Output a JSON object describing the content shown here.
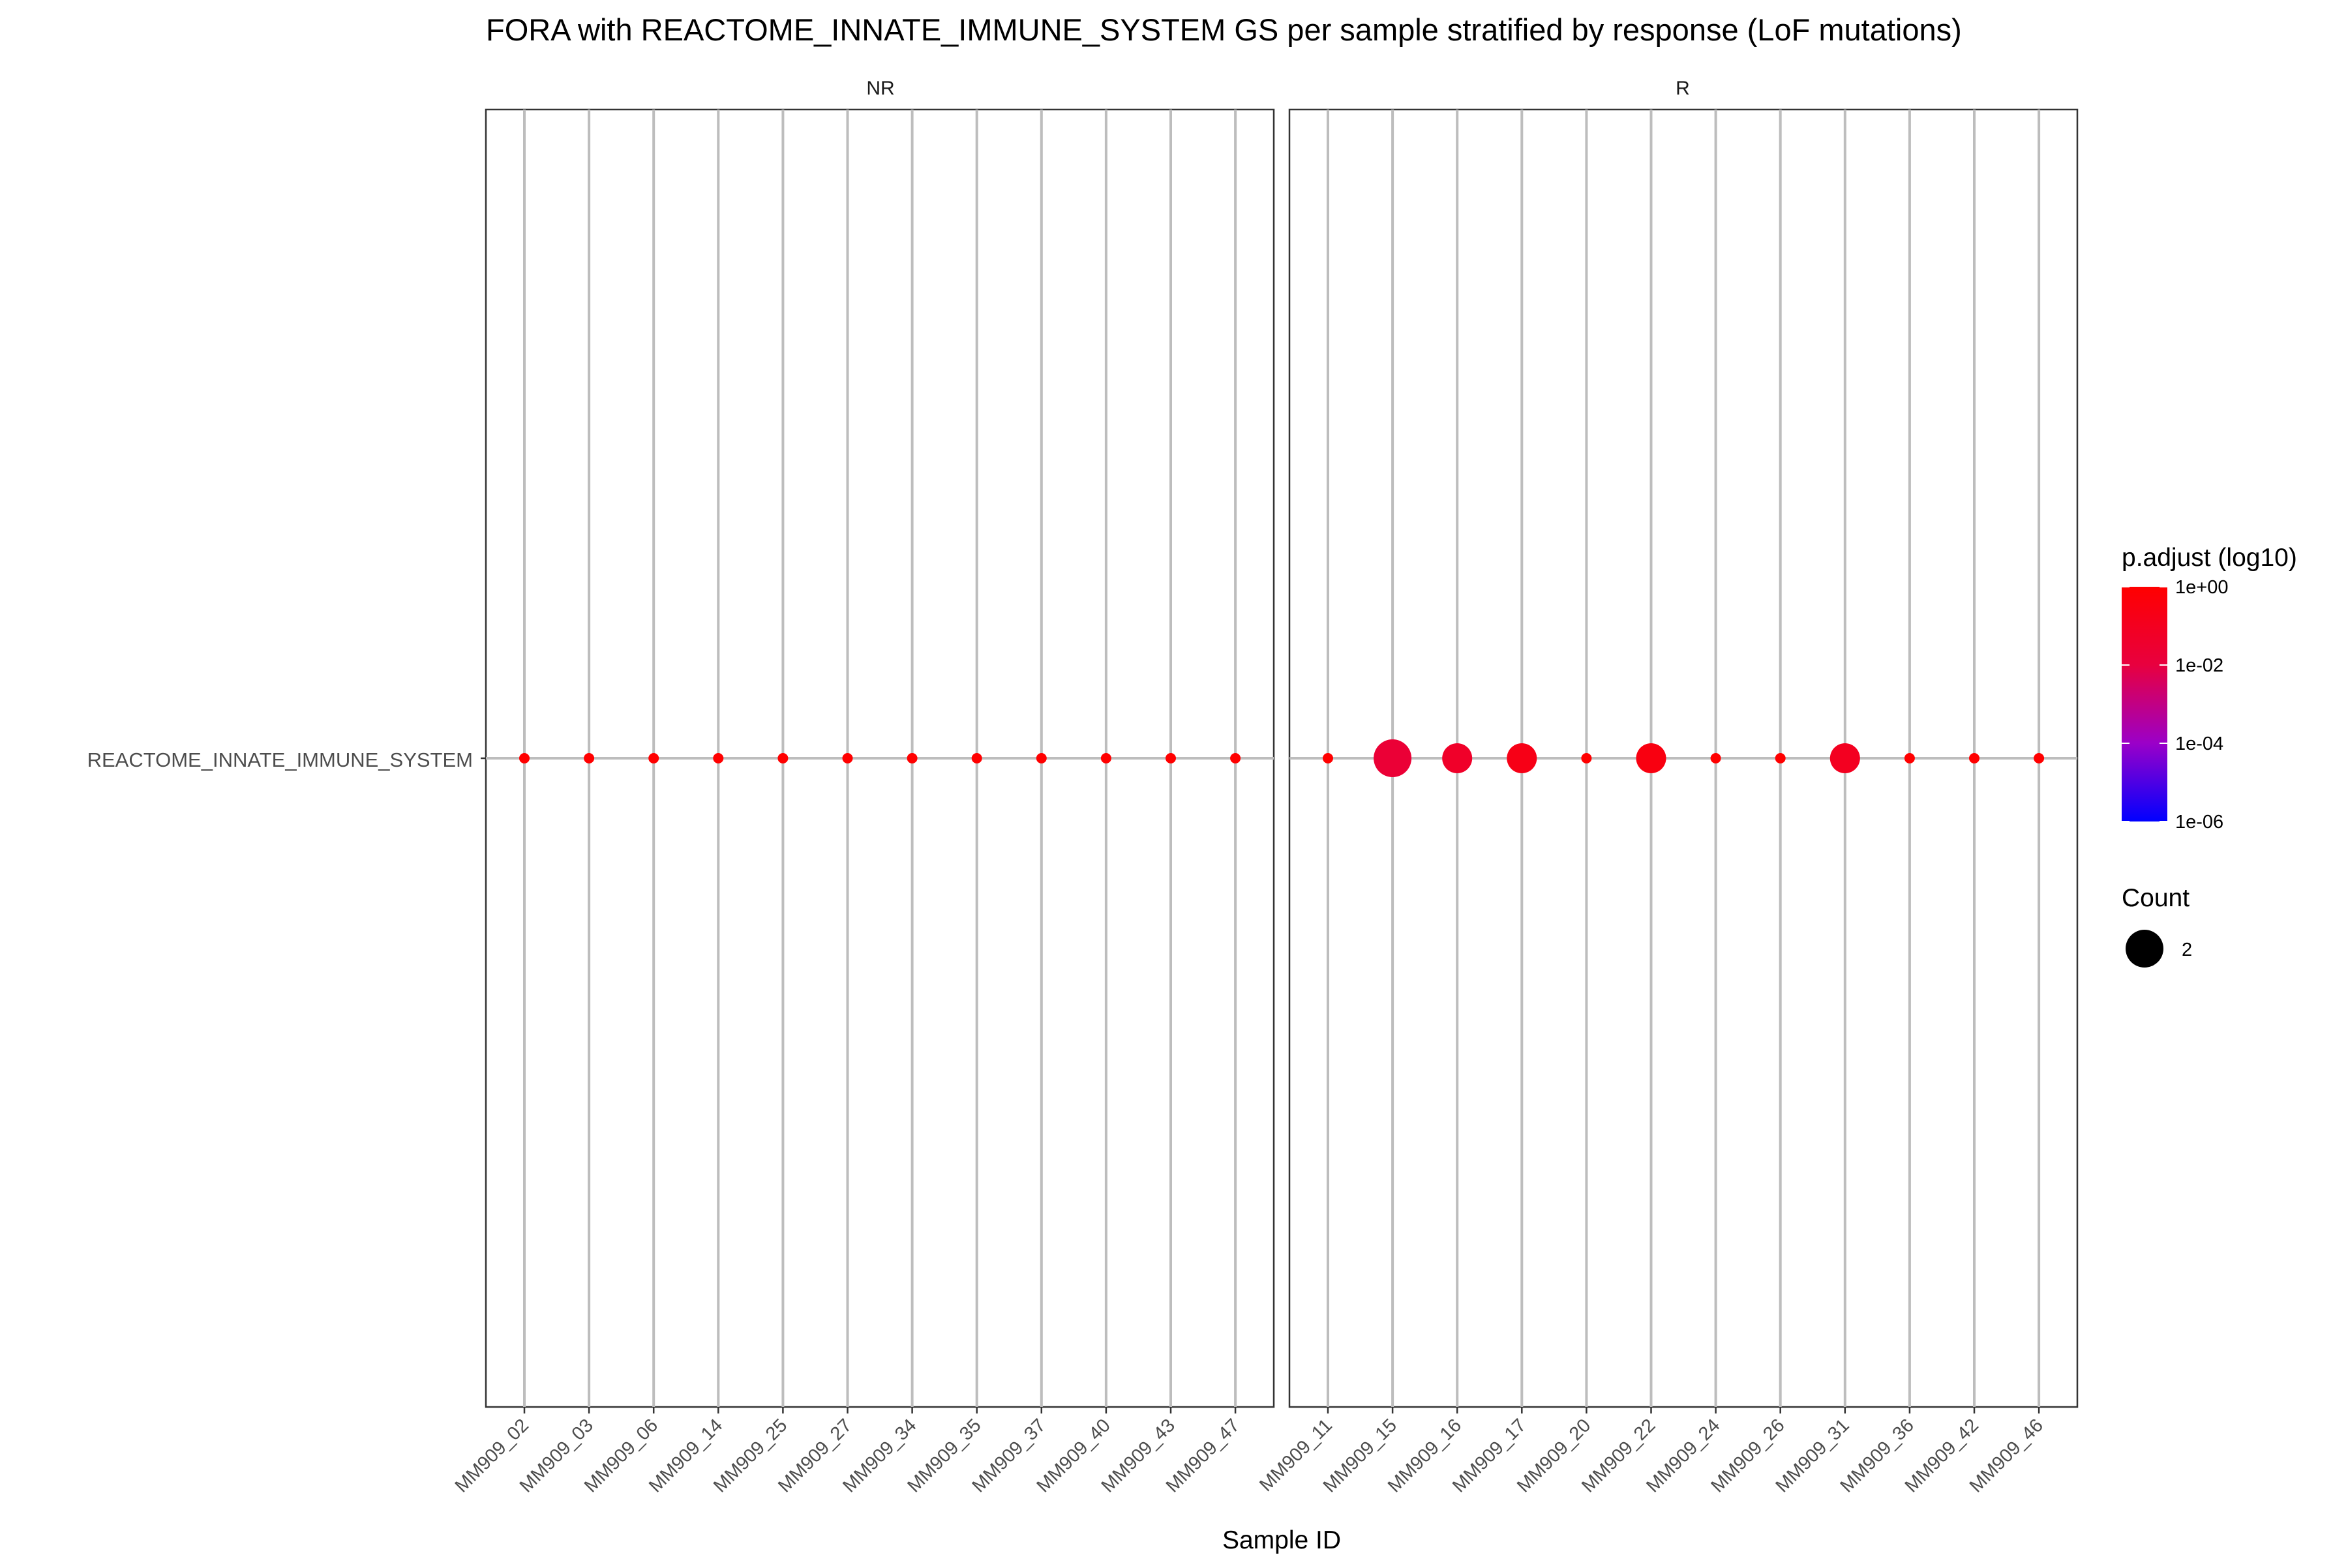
{
  "chart_data": {
    "type": "scatter",
    "title": "FORA with REACTOME_INNATE_IMMUNE_SYSTEM GS per sample stratified by response (LoF mutations)",
    "xlabel": "Sample ID",
    "ylabel": "",
    "y_categories": [
      "REACTOME_INNATE_IMMUNE_SYSTEM"
    ],
    "grid": true,
    "facets": [
      {
        "label": "NR",
        "categories": [
          "MM909_02",
          "MM909_03",
          "MM909_06",
          "MM909_14",
          "MM909_25",
          "MM909_27",
          "MM909_34",
          "MM909_35",
          "MM909_37",
          "MM909_40",
          "MM909_43",
          "MM909_47"
        ],
        "count": [
          1,
          1,
          1,
          1,
          1,
          1,
          1,
          1,
          1,
          1,
          1,
          1
        ],
        "p_adjust": [
          1,
          1,
          1,
          1,
          1,
          1,
          1,
          1,
          1,
          1,
          1,
          1
        ]
      },
      {
        "label": "R",
        "categories": [
          "MM909_11",
          "MM909_15",
          "MM909_16",
          "MM909_17",
          "MM909_20",
          "MM909_22",
          "MM909_24",
          "MM909_26",
          "MM909_31",
          "MM909_36",
          "MM909_42",
          "MM909_46"
        ],
        "count": [
          1,
          3,
          2,
          2,
          1,
          2,
          1,
          1,
          2,
          1,
          1,
          1
        ],
        "p_adjust": [
          1,
          0.02,
          0.05,
          0.2,
          1,
          0.3,
          1,
          1,
          0.1,
          1,
          1,
          1
        ]
      }
    ],
    "color_legend": {
      "title": "p.adjust (log10)",
      "ticks": [
        "1e+00",
        "1e-02",
        "1e-04",
        "1e-06"
      ],
      "range_log10": [
        0,
        -6
      ],
      "colors": {
        "high": "#ff0000",
        "low": "#0000ff"
      }
    },
    "size_legend": {
      "title": "Count",
      "entries": [
        {
          "label": "2",
          "value": 2
        }
      ]
    },
    "legend_position": "right"
  }
}
